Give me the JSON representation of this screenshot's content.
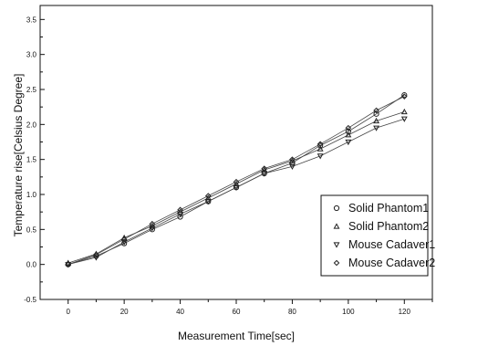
{
  "chart_data": {
    "type": "scatter",
    "title": "",
    "xlabel": "Measurement Time[sec]",
    "ylabel": "Temperature rise[Celsius Degree]",
    "xlim": [
      -10,
      130
    ],
    "ylim": [
      -0.5,
      3.7
    ],
    "xticks": [
      "0",
      "20",
      "40",
      "60",
      "80",
      "100",
      "120"
    ],
    "yticks": [
      "-0.5",
      "0.0",
      "0.5",
      "1.0",
      "1.5",
      "2.0",
      "2.5",
      "3.0",
      "3.5"
    ],
    "legend_position": "bottom-right",
    "series": [
      {
        "name": "Solid Phantom1",
        "marker": "circle",
        "x": [
          0,
          10,
          20,
          30,
          40,
          50,
          60,
          70,
          80,
          90,
          100,
          110,
          120
        ],
        "y": [
          0.0,
          0.12,
          0.3,
          0.5,
          0.68,
          0.9,
          1.1,
          1.3,
          1.45,
          1.7,
          1.9,
          2.15,
          2.42
        ]
      },
      {
        "name": "Solid Phantom2",
        "marker": "triangle-up",
        "x": [
          0,
          10,
          20,
          30,
          40,
          50,
          60,
          70,
          80,
          90,
          100,
          110,
          120
        ],
        "y": [
          0.02,
          0.15,
          0.38,
          0.55,
          0.75,
          0.95,
          1.15,
          1.35,
          1.48,
          1.65,
          1.85,
          2.05,
          2.18
        ]
      },
      {
        "name": "Mouse Cadaver1",
        "marker": "triangle-down",
        "x": [
          0,
          10,
          20,
          30,
          40,
          50,
          60,
          70,
          80,
          90,
          100,
          110,
          120
        ],
        "y": [
          0.0,
          0.1,
          0.32,
          0.52,
          0.72,
          0.9,
          1.1,
          1.3,
          1.4,
          1.55,
          1.75,
          1.95,
          2.08
        ]
      },
      {
        "name": "Mouse Cadaver2",
        "marker": "diamond",
        "x": [
          0,
          10,
          20,
          30,
          40,
          50,
          60,
          70,
          80,
          90,
          100,
          110,
          120
        ],
        "y": [
          0.0,
          0.14,
          0.36,
          0.58,
          0.78,
          0.98,
          1.18,
          1.37,
          1.5,
          1.72,
          1.95,
          2.2,
          2.4
        ]
      }
    ]
  }
}
